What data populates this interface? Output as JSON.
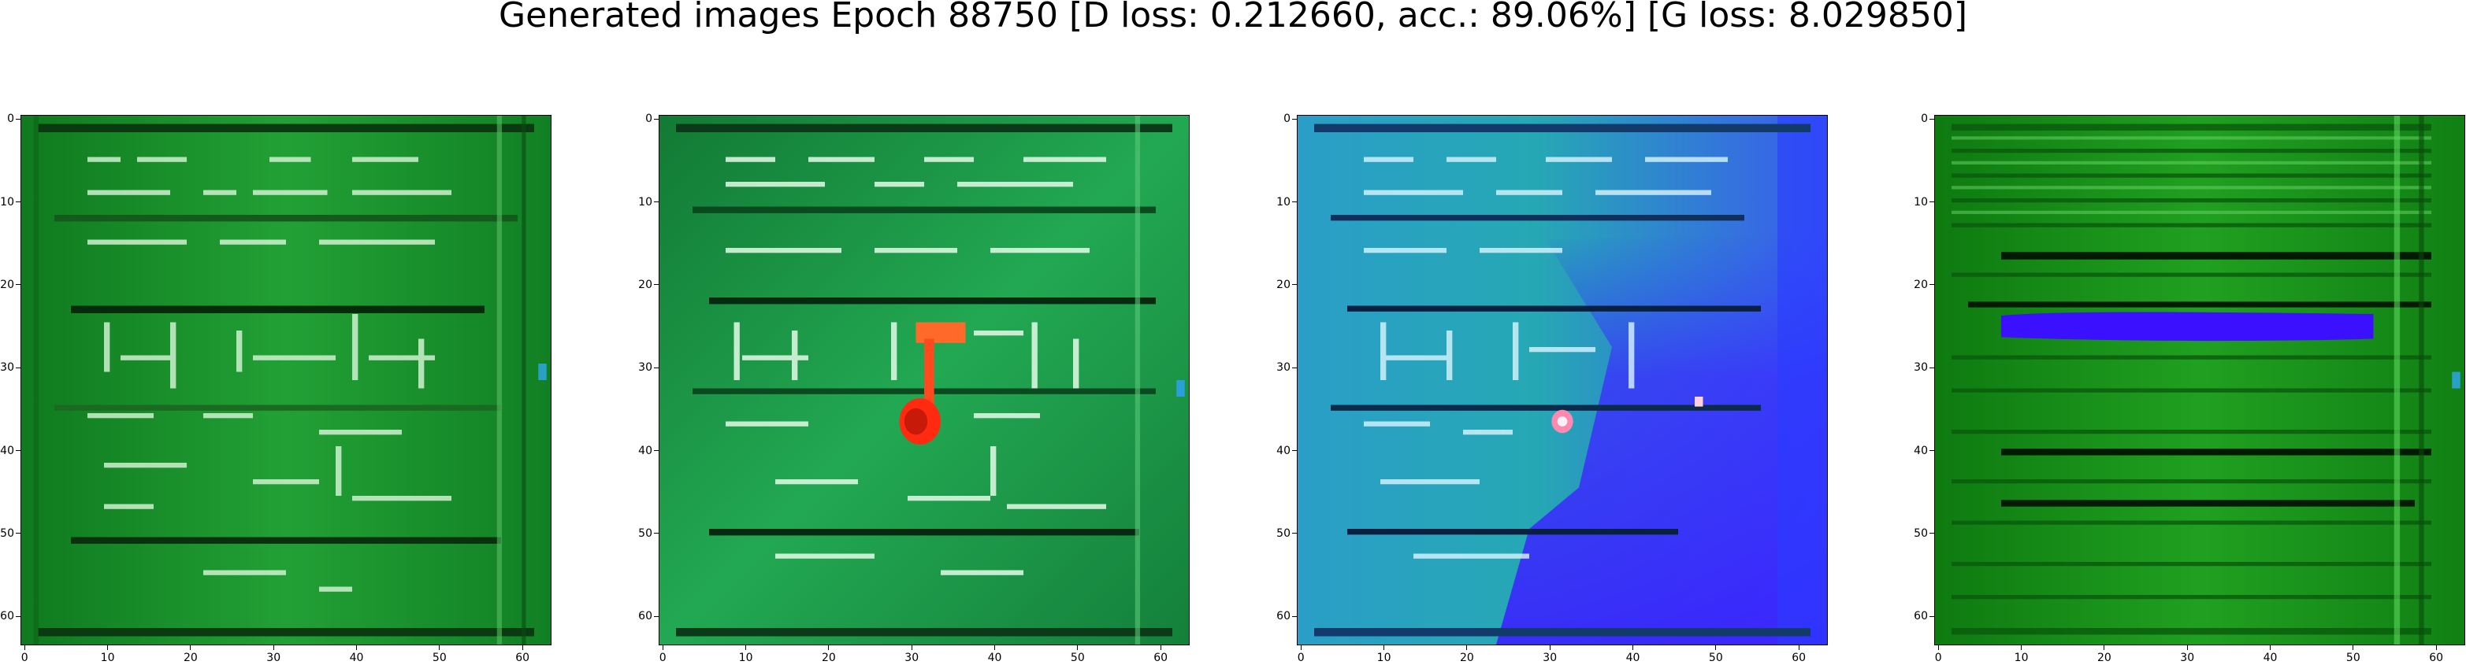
{
  "figure": {
    "title": "Generated images Epoch 88750 [D loss: 0.212660, acc.: 89.06%] [G loss: 8.029850]"
  },
  "axes": {
    "x_ticks": [
      "0",
      "10",
      "20",
      "30",
      "40",
      "50",
      "60"
    ],
    "y_ticks": [
      "0",
      "10",
      "20",
      "30",
      "40",
      "50",
      "60"
    ],
    "range": [
      -0.5,
      63.5
    ]
  },
  "images": [
    {
      "name": "generated-image-1",
      "dominant_color": "#1f9a2e",
      "description_color_dark": "#0d6e1a",
      "accent_color": "#e6fbe6"
    },
    {
      "name": "generated-image-2",
      "dominant_color": "#1fa04a",
      "description_color_dark": "#0e7030",
      "accent_color": "#ff3b1a"
    },
    {
      "name": "generated-image-3",
      "dominant_color": "#22a6b8",
      "description_color_dark": "#1a6f9a",
      "accent_color": "#3a2bff"
    },
    {
      "name": "generated-image-4",
      "dominant_color": "#1a9a1a",
      "description_color_dark": "#0c6a0c",
      "accent_color": "#2a10ff"
    }
  ]
}
